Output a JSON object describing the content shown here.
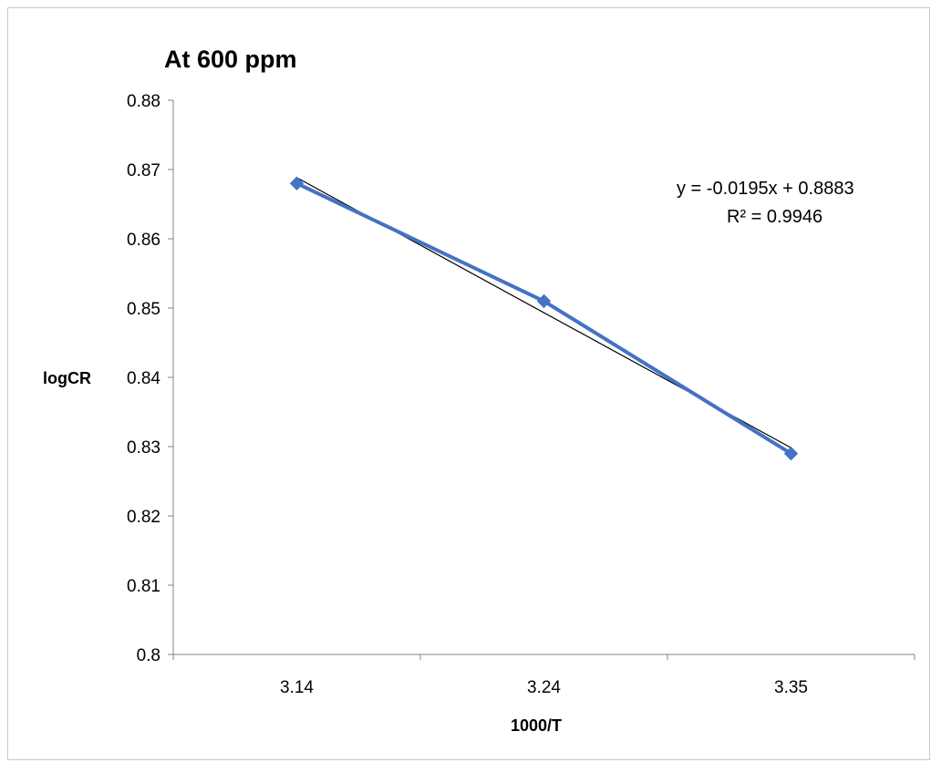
{
  "chart_data": {
    "type": "line",
    "title": "At 600 ppm",
    "xlabel": "1000/T",
    "ylabel": "logCR",
    "categories": [
      "3.14",
      "3.24",
      "3.35"
    ],
    "series": [
      {
        "values": [
          0.868,
          0.851,
          0.829
        ],
        "color": "#4472c4",
        "marker": "diamond"
      }
    ],
    "trendline": {
      "type": "linear",
      "equation": "y = -0.0195x + 0.8883",
      "r_squared": "R² = 0.9946",
      "color": "#000000"
    },
    "ylim": [
      0.8,
      0.88
    ],
    "yticks": [
      "0.8",
      "0.81",
      "0.82",
      "0.83",
      "0.84",
      "0.85",
      "0.86",
      "0.87",
      "0.88"
    ],
    "grid": false,
    "legend": "none"
  }
}
